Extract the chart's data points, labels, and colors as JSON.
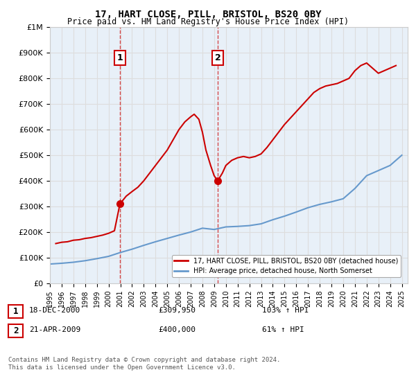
{
  "title": "17, HART CLOSE, PILL, BRISTOL, BS20 0BY",
  "subtitle": "Price paid vs. HM Land Registry's House Price Index (HPI)",
  "legend_property": "17, HART CLOSE, PILL, BRISTOL, BS20 0BY (detached house)",
  "legend_hpi": "HPI: Average price, detached house, North Somerset",
  "transaction1_label": "1",
  "transaction1_date": "18-DEC-2000",
  "transaction1_price": "£309,950",
  "transaction1_hpi": "103% ↑ HPI",
  "transaction1_year": 2000.97,
  "transaction1_value": 309950,
  "transaction2_label": "2",
  "transaction2_date": "21-APR-2009",
  "transaction2_price": "£400,000",
  "transaction2_hpi": "61% ↑ HPI",
  "transaction2_year": 2009.3,
  "transaction2_value": 400000,
  "footnote": "Contains HM Land Registry data © Crown copyright and database right 2024.\nThis data is licensed under the Open Government Licence v3.0.",
  "property_color": "#cc0000",
  "hpi_color": "#6699cc",
  "vline_color": "#cc0000",
  "marker_box_color": "#cc0000",
  "background_color": "#ffffff",
  "grid_color": "#dddddd",
  "ylim": [
    0,
    1000000
  ],
  "xlim_start": 1995.0,
  "xlim_end": 2025.5,
  "hpi_years": [
    1995,
    1996,
    1997,
    1998,
    1999,
    2000,
    2001,
    2002,
    2003,
    2004,
    2005,
    2006,
    2007,
    2008,
    2009,
    2010,
    2011,
    2012,
    2013,
    2014,
    2015,
    2016,
    2017,
    2018,
    2019,
    2020,
    2021,
    2022,
    2023,
    2024,
    2025
  ],
  "hpi_values": [
    75000,
    78000,
    82000,
    88000,
    96000,
    105000,
    120000,
    133000,
    148000,
    162000,
    175000,
    188000,
    200000,
    215000,
    210000,
    220000,
    222000,
    225000,
    232000,
    248000,
    262000,
    278000,
    295000,
    308000,
    318000,
    330000,
    370000,
    420000,
    440000,
    460000,
    500000
  ],
  "property_years": [
    1995.5,
    1996.0,
    1996.5,
    1997.0,
    1997.5,
    1998.0,
    1998.5,
    1999.0,
    1999.5,
    2000.0,
    2000.5,
    2000.97,
    2001.5,
    2002.0,
    2002.5,
    2003.0,
    2003.5,
    2004.0,
    2004.5,
    2005.0,
    2005.5,
    2006.0,
    2006.5,
    2007.0,
    2007.3,
    2007.7,
    2008.0,
    2008.3,
    2008.7,
    2009.0,
    2009.3,
    2009.7,
    2010.0,
    2010.5,
    2011.0,
    2011.5,
    2012.0,
    2012.5,
    2013.0,
    2013.5,
    2014.0,
    2014.5,
    2015.0,
    2015.5,
    2016.0,
    2016.5,
    2017.0,
    2017.5,
    2018.0,
    2018.5,
    2019.0,
    2019.5,
    2020.0,
    2020.5,
    2021.0,
    2021.5,
    2022.0,
    2022.5,
    2023.0,
    2023.5,
    2024.0,
    2024.5
  ],
  "property_values": [
    155000,
    160000,
    162000,
    168000,
    170000,
    175000,
    178000,
    183000,
    188000,
    195000,
    205000,
    309950,
    340000,
    358000,
    375000,
    400000,
    430000,
    460000,
    490000,
    520000,
    560000,
    600000,
    630000,
    650000,
    660000,
    640000,
    590000,
    520000,
    460000,
    420000,
    400000,
    430000,
    460000,
    480000,
    490000,
    495000,
    490000,
    495000,
    505000,
    530000,
    560000,
    590000,
    620000,
    645000,
    670000,
    695000,
    720000,
    745000,
    760000,
    770000,
    775000,
    780000,
    790000,
    800000,
    830000,
    850000,
    860000,
    840000,
    820000,
    830000,
    840000,
    850000
  ]
}
